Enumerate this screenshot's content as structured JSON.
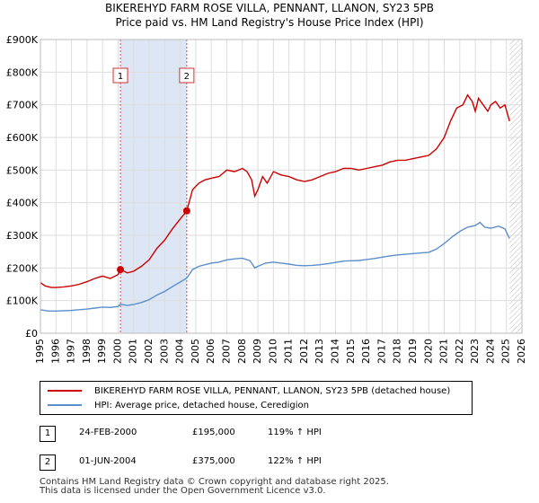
{
  "chart_data": {
    "type": "line",
    "title": "BIKEREHYD FARM ROSE VILLA, PENNANT, LLANON, SY23 5PB",
    "subtitle": "Price paid vs. HM Land Registry's House Price Index (HPI)",
    "xlim": [
      1995,
      2026
    ],
    "ylim": [
      0,
      900000
    ],
    "x_ticks": [
      "1995",
      "1996",
      "1997",
      "1998",
      "1999",
      "2000",
      "2001",
      "2002",
      "2003",
      "2004",
      "2005",
      "2006",
      "2007",
      "2008",
      "2009",
      "2010",
      "2011",
      "2012",
      "2013",
      "2014",
      "2015",
      "2016",
      "2017",
      "2018",
      "2019",
      "2020",
      "2021",
      "2022",
      "2023",
      "2024",
      "2025",
      "2026"
    ],
    "y_ticks": [
      {
        "value": 0,
        "label": "£0"
      },
      {
        "value": 100000,
        "label": "£100K"
      },
      {
        "value": 200000,
        "label": "£200K"
      },
      {
        "value": 300000,
        "label": "£300K"
      },
      {
        "value": 400000,
        "label": "£400K"
      },
      {
        "value": 500000,
        "label": "£500K"
      },
      {
        "value": 600000,
        "label": "£600K"
      },
      {
        "value": 700000,
        "label": "£700K"
      },
      {
        "value": 800000,
        "label": "£800K"
      },
      {
        "value": 900000,
        "label": "£900K"
      }
    ],
    "grid": true,
    "shaded_period": {
      "from": 2000.15,
      "to": 2004.42
    },
    "forecast_from": 2025.2,
    "series": [
      {
        "name": "BIKEREHYD FARM ROSE VILLA, PENNANT, LLANON, SY23 5PB (detached house)",
        "color": "#cc0000",
        "points": [
          [
            1995.0,
            155000
          ],
          [
            1995.3,
            145000
          ],
          [
            1995.7,
            140000
          ],
          [
            1996.0,
            140000
          ],
          [
            1996.5,
            142000
          ],
          [
            1997.0,
            145000
          ],
          [
            1997.5,
            150000
          ],
          [
            1998.0,
            158000
          ],
          [
            1998.5,
            168000
          ],
          [
            1999.0,
            175000
          ],
          [
            1999.5,
            168000
          ],
          [
            2000.0,
            180000
          ],
          [
            2000.15,
            195000
          ],
          [
            2000.6,
            185000
          ],
          [
            2001.0,
            190000
          ],
          [
            2001.5,
            205000
          ],
          [
            2002.0,
            225000
          ],
          [
            2002.5,
            260000
          ],
          [
            2003.0,
            285000
          ],
          [
            2003.5,
            320000
          ],
          [
            2004.0,
            350000
          ],
          [
            2004.42,
            375000
          ],
          [
            2004.8,
            440000
          ],
          [
            2005.2,
            460000
          ],
          [
            2005.6,
            470000
          ],
          [
            2006.0,
            475000
          ],
          [
            2006.5,
            480000
          ],
          [
            2007.0,
            500000
          ],
          [
            2007.5,
            495000
          ],
          [
            2008.0,
            505000
          ],
          [
            2008.3,
            495000
          ],
          [
            2008.6,
            470000
          ],
          [
            2008.8,
            420000
          ],
          [
            2009.0,
            440000
          ],
          [
            2009.3,
            480000
          ],
          [
            2009.6,
            460000
          ],
          [
            2010.0,
            495000
          ],
          [
            2010.5,
            485000
          ],
          [
            2011.0,
            480000
          ],
          [
            2011.5,
            470000
          ],
          [
            2012.0,
            465000
          ],
          [
            2012.5,
            470000
          ],
          [
            2013.0,
            480000
          ],
          [
            2013.5,
            490000
          ],
          [
            2014.0,
            495000
          ],
          [
            2014.5,
            505000
          ],
          [
            2015.0,
            505000
          ],
          [
            2015.5,
            500000
          ],
          [
            2016.0,
            505000
          ],
          [
            2016.5,
            510000
          ],
          [
            2017.0,
            515000
          ],
          [
            2017.5,
            525000
          ],
          [
            2018.0,
            530000
          ],
          [
            2018.5,
            530000
          ],
          [
            2019.0,
            535000
          ],
          [
            2019.5,
            540000
          ],
          [
            2020.0,
            545000
          ],
          [
            2020.5,
            565000
          ],
          [
            2021.0,
            600000
          ],
          [
            2021.4,
            650000
          ],
          [
            2021.8,
            690000
          ],
          [
            2022.2,
            700000
          ],
          [
            2022.5,
            730000
          ],
          [
            2022.8,
            710000
          ],
          [
            2023.0,
            680000
          ],
          [
            2023.2,
            720000
          ],
          [
            2023.5,
            700000
          ],
          [
            2023.8,
            680000
          ],
          [
            2024.0,
            700000
          ],
          [
            2024.3,
            710000
          ],
          [
            2024.6,
            690000
          ],
          [
            2024.9,
            700000
          ],
          [
            2025.2,
            650000
          ]
        ]
      },
      {
        "name": "HPI: Average price, detached house, Ceredigion",
        "color": "#5b8fcc",
        "points": [
          [
            1995.0,
            72000
          ],
          [
            1995.5,
            68000
          ],
          [
            1996.0,
            68000
          ],
          [
            1996.5,
            69000
          ],
          [
            1997.0,
            70000
          ],
          [
            1997.5,
            72000
          ],
          [
            1998.0,
            74000
          ],
          [
            1998.5,
            77000
          ],
          [
            1999.0,
            80000
          ],
          [
            1999.5,
            79000
          ],
          [
            2000.0,
            82000
          ],
          [
            2000.15,
            89000
          ],
          [
            2000.6,
            85000
          ],
          [
            2001.0,
            88000
          ],
          [
            2001.5,
            94000
          ],
          [
            2002.0,
            103000
          ],
          [
            2002.5,
            117000
          ],
          [
            2003.0,
            128000
          ],
          [
            2003.5,
            143000
          ],
          [
            2004.0,
            157000
          ],
          [
            2004.42,
            169000
          ],
          [
            2004.8,
            195000
          ],
          [
            2005.2,
            205000
          ],
          [
            2005.6,
            210000
          ],
          [
            2006.0,
            215000
          ],
          [
            2006.5,
            218000
          ],
          [
            2007.0,
            225000
          ],
          [
            2007.5,
            228000
          ],
          [
            2008.0,
            230000
          ],
          [
            2008.5,
            222000
          ],
          [
            2008.8,
            200000
          ],
          [
            2009.0,
            205000
          ],
          [
            2009.5,
            215000
          ],
          [
            2010.0,
            218000
          ],
          [
            2010.5,
            215000
          ],
          [
            2011.0,
            212000
          ],
          [
            2011.5,
            208000
          ],
          [
            2012.0,
            207000
          ],
          [
            2012.5,
            208000
          ],
          [
            2013.0,
            210000
          ],
          [
            2013.5,
            213000
          ],
          [
            2014.0,
            217000
          ],
          [
            2014.5,
            221000
          ],
          [
            2015.0,
            222000
          ],
          [
            2015.5,
            223000
          ],
          [
            2016.0,
            226000
          ],
          [
            2016.5,
            229000
          ],
          [
            2017.0,
            233000
          ],
          [
            2017.5,
            237000
          ],
          [
            2018.0,
            240000
          ],
          [
            2018.5,
            242000
          ],
          [
            2019.0,
            244000
          ],
          [
            2019.5,
            246000
          ],
          [
            2020.0,
            248000
          ],
          [
            2020.5,
            258000
          ],
          [
            2021.0,
            275000
          ],
          [
            2021.5,
            295000
          ],
          [
            2022.0,
            312000
          ],
          [
            2022.5,
            325000
          ],
          [
            2023.0,
            330000
          ],
          [
            2023.3,
            340000
          ],
          [
            2023.6,
            325000
          ],
          [
            2024.0,
            322000
          ],
          [
            2024.5,
            328000
          ],
          [
            2024.9,
            320000
          ],
          [
            2025.2,
            290000
          ]
        ]
      }
    ],
    "markers": [
      {
        "label": "1",
        "x": 2000.15,
        "y": 195000
      },
      {
        "label": "2",
        "x": 2004.42,
        "y": 375000
      }
    ]
  },
  "legend": {
    "items": [
      {
        "label": "BIKEREHYD FARM ROSE VILLA, PENNANT, LLANON, SY23 5PB (detached house)",
        "color": "#cc0000"
      },
      {
        "label": "HPI: Average price, detached house, Ceredigion",
        "color": "#5b8fcc"
      }
    ]
  },
  "transactions": [
    {
      "num": "1",
      "date": "24-FEB-2000",
      "price": "£195,000",
      "hpi": "119% ↑ HPI"
    },
    {
      "num": "2",
      "date": "01-JUN-2004",
      "price": "£375,000",
      "hpi": "122% ↑ HPI"
    }
  ],
  "footer": {
    "line1": "Contains HM Land Registry data © Crown copyright and database right 2025.",
    "line2": "This data is licensed under the Open Government Licence v3.0."
  }
}
